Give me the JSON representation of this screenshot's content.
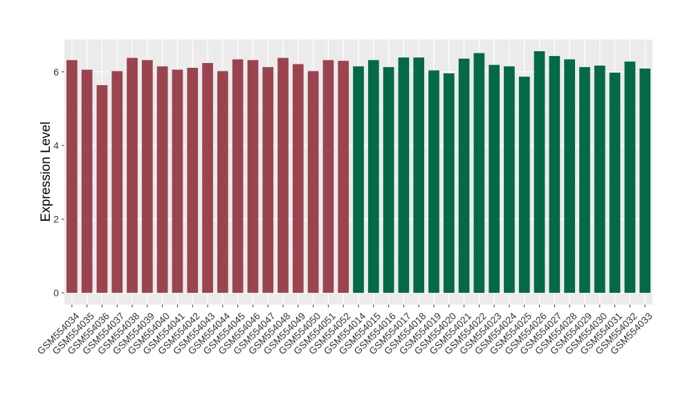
{
  "chart_data": {
    "type": "bar",
    "y_label": "Expression Level",
    "categories": [
      "GSM554034",
      "GSM554035",
      "GSM554036",
      "GSM554037",
      "GSM554038",
      "GSM554039",
      "GSM554040",
      "GSM554041",
      "GSM554042",
      "GSM554043",
      "GSM554044",
      "GSM554045",
      "GSM554046",
      "GSM554047",
      "GSM554048",
      "GSM554049",
      "GSM554050",
      "GSM554051",
      "GSM554052",
      "GSM554014",
      "GSM554015",
      "GSM554016",
      "GSM554017",
      "GSM554018",
      "GSM554019",
      "GSM554020",
      "GSM554021",
      "GSM554022",
      "GSM554023",
      "GSM554024",
      "GSM554025",
      "GSM554026",
      "GSM554027",
      "GSM554028",
      "GSM554029",
      "GSM554030",
      "GSM554031",
      "GSM554032",
      "GSM554033"
    ],
    "values": [
      6.32,
      6.06,
      5.64,
      6.02,
      6.38,
      6.32,
      6.15,
      6.06,
      6.11,
      6.24,
      6.02,
      6.34,
      6.32,
      6.13,
      6.38,
      6.21,
      6.02,
      6.32,
      6.3,
      6.15,
      6.32,
      6.13,
      6.39,
      6.39,
      6.04,
      5.96,
      6.36,
      6.51,
      6.19,
      6.15,
      5.87,
      6.56,
      6.43,
      6.34,
      6.13,
      6.17,
      5.98,
      6.28,
      6.09
    ],
    "colors": [
      "#9b4450",
      "#9b4450",
      "#9b4450",
      "#9b4450",
      "#9b4450",
      "#9b4450",
      "#9b4450",
      "#9b4450",
      "#9b4450",
      "#9b4450",
      "#9b4450",
      "#9b4450",
      "#9b4450",
      "#9b4450",
      "#9b4450",
      "#9b4450",
      "#9b4450",
      "#9b4450",
      "#9b4450",
      "#046a45",
      "#046a45",
      "#046a45",
      "#046a45",
      "#046a45",
      "#046a45",
      "#046a45",
      "#046a45",
      "#046a45",
      "#046a45",
      "#046a45",
      "#046a45",
      "#046a45",
      "#046a45",
      "#046a45",
      "#046a45",
      "#046a45",
      "#046a45",
      "#046a45",
      "#046a45"
    ],
    "ylim": [
      -0.32,
      6.88
    ],
    "yticks": [
      0,
      2,
      4,
      6
    ],
    "grid": true
  }
}
